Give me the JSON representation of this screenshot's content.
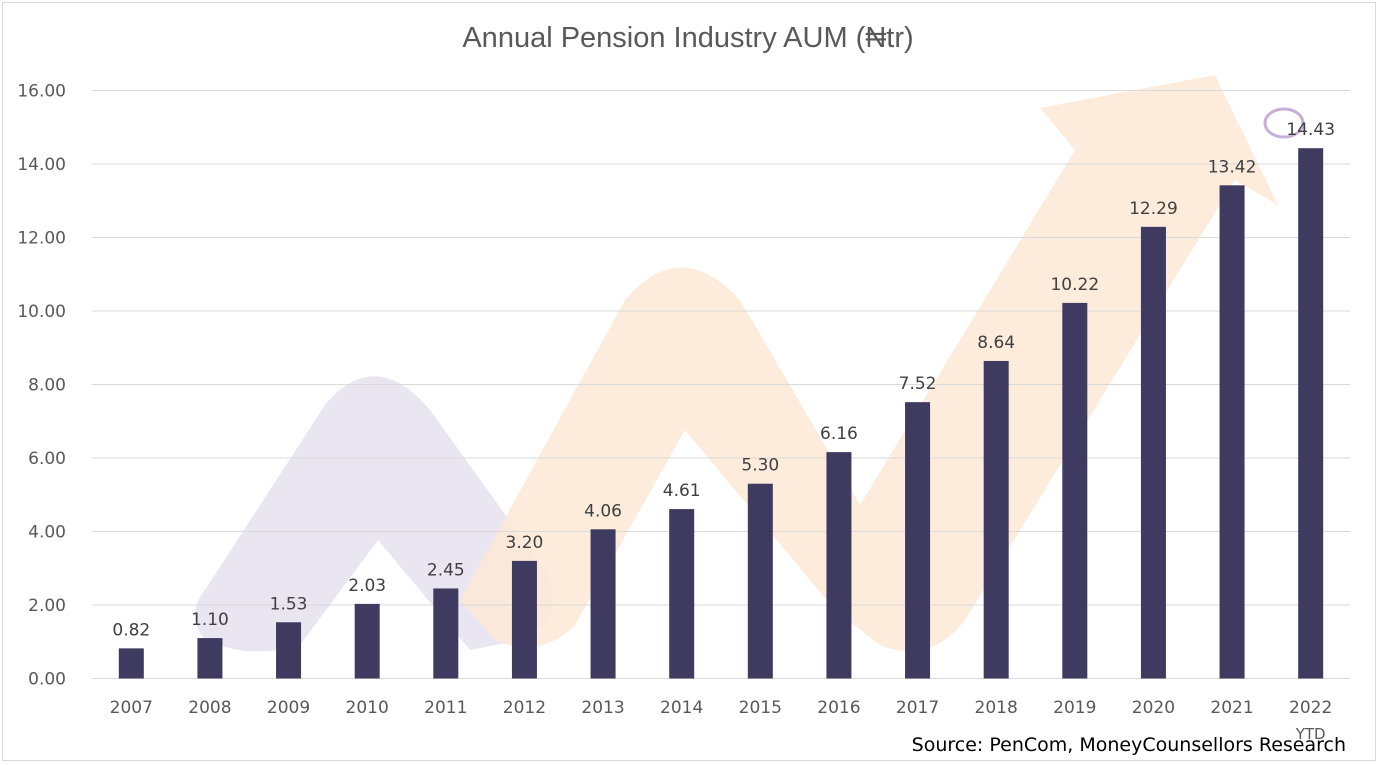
{
  "chart_data": {
    "type": "bar",
    "title": "Annual Pension Industry AUM (₦tr)",
    "categories": [
      "2007",
      "2008",
      "2009",
      "2010",
      "2011",
      "2012",
      "2013",
      "2014",
      "2015",
      "2016",
      "2017",
      "2018",
      "2019",
      "2020",
      "2021",
      "2022"
    ],
    "category_sublabels": [
      "",
      "",
      "",
      "",
      "",
      "",
      "",
      "",
      "",
      "",
      "",
      "",
      "",
      "",
      "",
      "YTD"
    ],
    "values": [
      0.82,
      1.1,
      1.53,
      2.03,
      2.45,
      3.2,
      4.06,
      4.61,
      5.3,
      6.16,
      7.52,
      8.64,
      10.22,
      12.29,
      13.42,
      14.43
    ],
    "value_labels": [
      "0.82",
      "1.10",
      "1.53",
      "2.03",
      "2.45",
      "3.20",
      "4.06",
      "4.61",
      "5.30",
      "6.16",
      "7.52",
      "8.64",
      "10.22",
      "12.29",
      "13.42",
      "14.43"
    ],
    "ylim": [
      0,
      16
    ],
    "yticks": [
      "0.00",
      "2.00",
      "4.00",
      "6.00",
      "8.00",
      "10.00",
      "12.00",
      "14.00",
      "16.00"
    ],
    "xlabel": "",
    "ylabel": "",
    "grid": true,
    "legend": "none",
    "bar_color": "#3f3a60",
    "gridline_color": "#d9d9d9",
    "decorative_arrow_colors": [
      "#e7e2f0",
      "#fde9d6"
    ],
    "highlight_circle_color": "#b89ccf"
  },
  "source": "Source: PenCom, MoneyCounsellors Research"
}
